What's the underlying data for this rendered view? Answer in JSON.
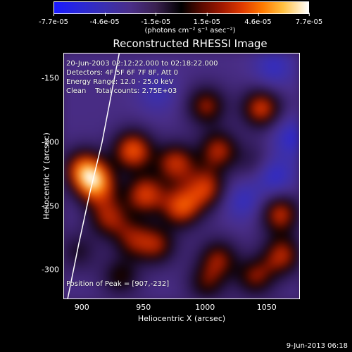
{
  "colorbar": {
    "ticks": [
      "-7.7e-05",
      "-4.6e-05",
      "-1.5e-05",
      "1.5e-05",
      "4.6e-05",
      "7.7e-05"
    ],
    "units": "(photons cm⁻² s⁻¹ asec⁻²)"
  },
  "annotations": {
    "time": "20-Jun-2003 02:12:22.000 to 02:18:22.000",
    "detectors": "Detectors: 4F 5F 6F 7F 8F, Att 0",
    "energy": "Energy Range: 12.0 - 25.0 keV",
    "clean": "Clean    Total counts: 2.75E+03",
    "peak": "Position of Peak = [907,-232]"
  },
  "footer": "9-Jun-2013 06:18",
  "chart_data": {
    "type": "heatmap",
    "title": "Reconstructed RHESSI Image",
    "xlabel": "Heliocentric X (arcsec)",
    "ylabel": "Heliocentric Y (arcsec)",
    "xlim": [
      885,
      1077
    ],
    "ylim": [
      -323,
      -130
    ],
    "xticks": [
      900,
      950,
      1000,
      1050
    ],
    "yticks": [
      -150,
      -200,
      -250,
      -300
    ],
    "color_range": [
      -7.7e-05,
      7.7e-05
    ],
    "peak": [
      907,
      -232
    ],
    "sources": [
      {
        "x": 910,
        "y": -232,
        "v": 0.9
      },
      {
        "x": 900,
        "y": -220,
        "v": 0.8
      },
      {
        "x": 940,
        "y": -205,
        "v": 0.85
      },
      {
        "x": 920,
        "y": -258,
        "v": 0.6
      },
      {
        "x": 950,
        "y": -240,
        "v": 0.75
      },
      {
        "x": 980,
        "y": -250,
        "v": 0.8
      },
      {
        "x": 1000,
        "y": -235,
        "v": 0.7
      },
      {
        "x": 975,
        "y": -215,
        "v": 0.7
      },
      {
        "x": 1010,
        "y": -205,
        "v": 0.65
      },
      {
        "x": 1000,
        "y": -170,
        "v": 0.6
      },
      {
        "x": 1045,
        "y": -172,
        "v": 0.75
      },
      {
        "x": 960,
        "y": -280,
        "v": 0.55
      },
      {
        "x": 940,
        "y": -275,
        "v": 0.5
      },
      {
        "x": 1010,
        "y": -290,
        "v": 0.55
      },
      {
        "x": 1060,
        "y": -255,
        "v": 0.7
      },
      {
        "x": 1062,
        "y": -288,
        "v": 0.65
      },
      {
        "x": 1040,
        "y": -305,
        "v": 0.55
      },
      {
        "x": 1000,
        "y": -310,
        "v": 0.45
      },
      {
        "x": 930,
        "y": -305,
        "v": 0.45
      },
      {
        "x": 895,
        "y": -285,
        "v": 0.35
      },
      {
        "x": 1040,
        "y": -215,
        "v": 0.3
      },
      {
        "x": 1030,
        "y": -245,
        "v": -0.4
      },
      {
        "x": 1055,
        "y": -225,
        "v": -0.5
      },
      {
        "x": 1055,
        "y": -140,
        "v": -0.4
      },
      {
        "x": 960,
        "y": -160,
        "v": -0.3
      },
      {
        "x": 1070,
        "y": -195,
        "v": -0.45
      }
    ],
    "limb": [
      [
        930,
        -130
      ],
      [
        924,
        -160
      ],
      [
        916,
        -200
      ],
      [
        906,
        -240
      ],
      [
        897,
        -280
      ],
      [
        888,
        -323
      ]
    ]
  }
}
